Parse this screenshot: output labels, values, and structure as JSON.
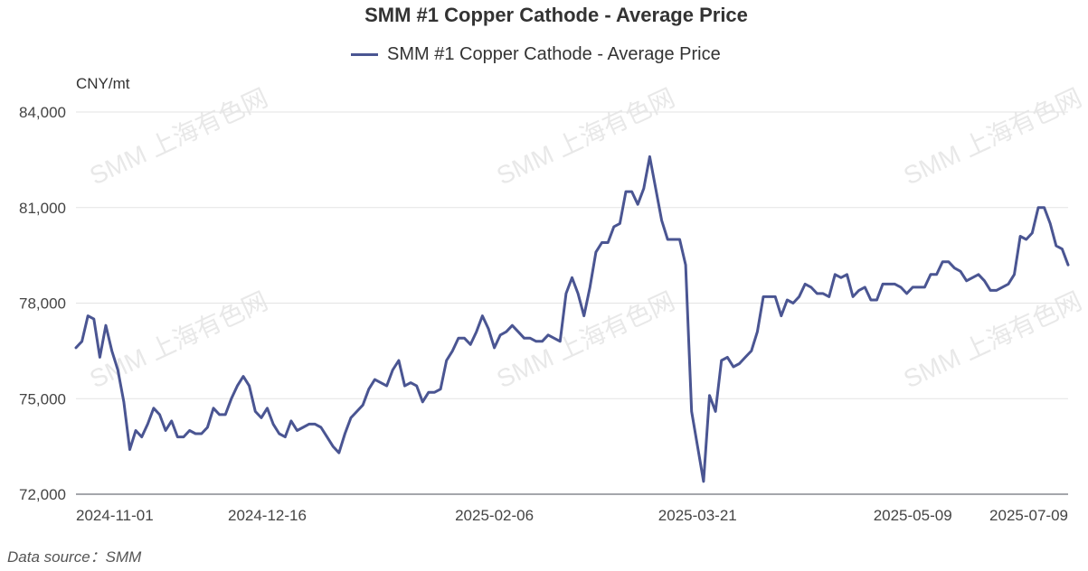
{
  "source_label": "Data source：SMM",
  "watermark": "SMM 上海有色网",
  "chart_data": {
    "type": "line",
    "title": "SMM #1 Copper Cathode - Average Price",
    "ylabel": "CNY/mt",
    "ylim": [
      72000,
      84000
    ],
    "yticks": [
      72000,
      75000,
      78000,
      81000,
      84000
    ],
    "ytick_labels": [
      "72,000",
      "75,000",
      "78,000",
      "81,000",
      "84,000"
    ],
    "xticks": [
      "2024-11-01",
      "2024-12-16",
      "2025-02-06",
      "2025-03-21",
      "2025-05-09",
      "2025-07-09"
    ],
    "grid": true,
    "legend_position": "top",
    "series": [
      {
        "name": "SMM #1 Copper Cathode - Average Price",
        "color": "#4a5592",
        "values": [
          76600,
          76800,
          77600,
          77500,
          76300,
          77300,
          76500,
          75900,
          74900,
          73400,
          74000,
          73800,
          74200,
          74700,
          74500,
          74000,
          74300,
          73800,
          73800,
          74000,
          73900,
          73900,
          74100,
          74700,
          74500,
          74500,
          75000,
          75400,
          75700,
          75400,
          74600,
          74400,
          74700,
          74200,
          73900,
          73800,
          74300,
          74000,
          74100,
          74200,
          74200,
          74100,
          73800,
          73500,
          73300,
          73900,
          74400,
          74600,
          74800,
          75300,
          75600,
          75500,
          75400,
          75900,
          76200,
          75400,
          75500,
          75400,
          74900,
          75200,
          75200,
          75300,
          76200,
          76500,
          76900,
          76900,
          76700,
          77100,
          77600,
          77200,
          76600,
          77000,
          77100,
          77300,
          77100,
          76900,
          76900,
          76800,
          76800,
          77000,
          76900,
          76800,
          78300,
          78800,
          78300,
          77600,
          78500,
          79600,
          79900,
          79900,
          80400,
          80500,
          81500,
          81500,
          81100,
          81600,
          82600,
          81600,
          80600,
          80000,
          80000,
          80000,
          79200,
          74600,
          73500,
          72400,
          75100,
          74600,
          76200,
          76300,
          76000,
          76100,
          76300,
          76500,
          77100,
          78200,
          78200,
          78200,
          77600,
          78100,
          78000,
          78200,
          78600,
          78500,
          78300,
          78300,
          78200,
          78900,
          78800,
          78900,
          78200,
          78400,
          78500,
          78100,
          78100,
          78600,
          78600,
          78600,
          78500,
          78300,
          78500,
          78500,
          78500,
          78900,
          78900,
          79300,
          79300,
          79100,
          79000,
          78700,
          78800,
          78900,
          78700,
          78400,
          78400,
          78500,
          78600,
          78900,
          80100,
          80000,
          80200,
          81000,
          81000,
          80500,
          79800,
          79700,
          79200
        ]
      }
    ]
  }
}
